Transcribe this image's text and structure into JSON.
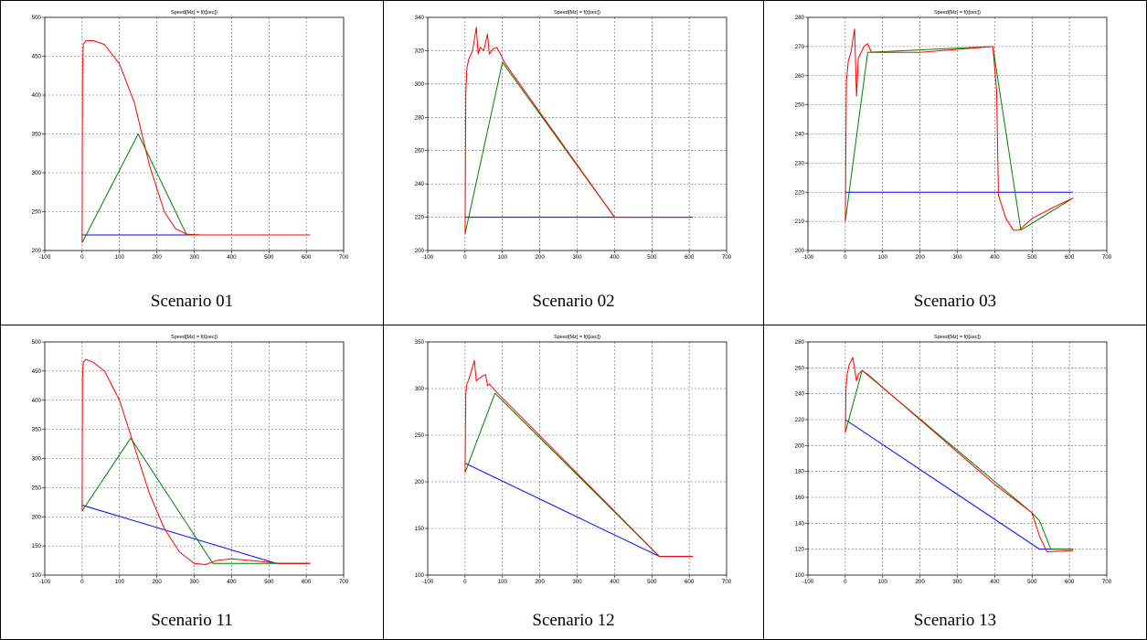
{
  "colors": {
    "setpoint": "#0000ff",
    "reference": "#008000",
    "speed": "#ff0000",
    "overlap": "#7a3a10"
  },
  "chart_data": [
    {
      "type": "line",
      "title": "Speed[Mz] = f(t[sec])",
      "caption": "Scenario 01",
      "xlim": [
        -100,
        700
      ],
      "ylim": [
        200,
        500
      ],
      "xticks": [
        -100,
        0,
        100,
        200,
        300,
        400,
        500,
        600,
        700
      ],
      "yticks": [
        200,
        250,
        300,
        350,
        400,
        450,
        500
      ],
      "grid": true,
      "series": [
        {
          "color": "blue",
          "x": [
            0,
            400,
            610
          ],
          "y": [
            220,
            220,
            220
          ]
        },
        {
          "color": "green",
          "x": [
            0,
            150,
            280,
            400
          ],
          "y": [
            210,
            350,
            220,
            220
          ]
        },
        {
          "color": "red",
          "x": [
            0,
            1,
            3,
            10,
            30,
            60,
            100,
            140,
            180,
            220,
            250,
            280,
            320,
            400,
            610
          ],
          "y": [
            210,
            430,
            465,
            470,
            470,
            465,
            440,
            390,
            310,
            250,
            228,
            221,
            220,
            220,
            220
          ]
        }
      ]
    },
    {
      "type": "line",
      "title": "Speed[Mz] = f(t[sec])",
      "caption": "Scenario 02",
      "xlim": [
        -100,
        700
      ],
      "ylim": [
        200,
        340
      ],
      "xticks": [
        -100,
        0,
        100,
        200,
        300,
        400,
        500,
        600,
        700
      ],
      "yticks": [
        200,
        220,
        240,
        260,
        280,
        300,
        320,
        340
      ],
      "grid": true,
      "series": [
        {
          "color": "blue",
          "x": [
            0,
            5,
            610
          ],
          "y": [
            220,
            220,
            220
          ]
        },
        {
          "color": "green",
          "x": [
            0,
            100,
            400
          ],
          "y": [
            210,
            313,
            220
          ]
        },
        {
          "color": "red",
          "x": [
            0,
            2,
            5,
            10,
            20,
            30,
            35,
            40,
            50,
            60,
            65,
            75,
            85,
            95,
            105,
            400,
            610
          ],
          "y": [
            210,
            295,
            310,
            315,
            320,
            334,
            318,
            322,
            320,
            330,
            318,
            321,
            322,
            318,
            313,
            220,
            220
          ]
        }
      ]
    },
    {
      "type": "line",
      "title": "Speed[Mz] = f(t[sec])",
      "caption": "Scenario 03",
      "xlim": [
        -100,
        700
      ],
      "ylim": [
        200,
        280
      ],
      "xticks": [
        -100,
        0,
        100,
        200,
        300,
        400,
        500,
        600,
        700
      ],
      "yticks": [
        200,
        210,
        220,
        230,
        240,
        250,
        260,
        270,
        280
      ],
      "grid": true,
      "series": [
        {
          "color": "blue",
          "x": [
            0,
            610
          ],
          "y": [
            220,
            220
          ]
        },
        {
          "color": "green",
          "x": [
            0,
            60,
            395,
            470,
            610
          ],
          "y": [
            210,
            268,
            270,
            207,
            218
          ]
        },
        {
          "color": "red",
          "x": [
            0,
            3,
            8,
            15,
            25,
            30,
            35,
            50,
            60,
            70,
            100,
            200,
            300,
            395,
            405,
            410,
            430,
            450,
            465,
            500,
            560,
            610
          ],
          "y": [
            210,
            258,
            265,
            268,
            276,
            253,
            266,
            270,
            271,
            268,
            268,
            268,
            269,
            270,
            255,
            219,
            211,
            207,
            207,
            211,
            215,
            218
          ]
        }
      ]
    },
    {
      "type": "line",
      "title": "Speed[Mz] = f(t[sec])",
      "caption": "Scenario 11",
      "xlim": [
        -100,
        700
      ],
      "ylim": [
        100,
        500
      ],
      "xticks": [
        -100,
        0,
        100,
        200,
        300,
        400,
        500,
        600,
        700
      ],
      "yticks": [
        100,
        150,
        200,
        250,
        300,
        350,
        400,
        450,
        500
      ],
      "grid": true,
      "series": [
        {
          "color": "blue",
          "x": [
            0,
            520,
            610
          ],
          "y": [
            220,
            120,
            120
          ]
        },
        {
          "color": "green",
          "x": [
            0,
            130,
            350,
            610
          ],
          "y": [
            210,
            335,
            120,
            120
          ]
        },
        {
          "color": "red",
          "x": [
            0,
            1,
            3,
            10,
            30,
            60,
            100,
            140,
            180,
            220,
            260,
            300,
            330,
            360,
            400,
            450,
            500,
            530,
            610
          ],
          "y": [
            210,
            440,
            465,
            470,
            465,
            450,
            400,
            320,
            240,
            180,
            140,
            120,
            118,
            125,
            128,
            125,
            122,
            120,
            120
          ]
        }
      ]
    },
    {
      "type": "line",
      "title": "Speed[Mz] = f(t[sec])",
      "caption": "Scenario 12",
      "xlim": [
        -100,
        700
      ],
      "ylim": [
        100,
        350
      ],
      "xticks": [
        -100,
        0,
        100,
        200,
        300,
        400,
        500,
        600,
        700
      ],
      "yticks": [
        100,
        150,
        200,
        250,
        300,
        350
      ],
      "grid": true,
      "series": [
        {
          "color": "blue",
          "x": [
            0,
            520,
            610
          ],
          "y": [
            220,
            120,
            120
          ]
        },
        {
          "color": "green",
          "x": [
            0,
            80,
            520
          ],
          "y": [
            210,
            295,
            120
          ]
        },
        {
          "color": "red",
          "x": [
            0,
            2,
            5,
            10,
            25,
            30,
            35,
            45,
            55,
            60,
            65,
            80,
            520,
            610
          ],
          "y": [
            210,
            295,
            305,
            310,
            330,
            308,
            310,
            313,
            315,
            303,
            305,
            298,
            120,
            120
          ]
        }
      ]
    },
    {
      "type": "line",
      "title": "Speed[Mz] = f(t[sec])",
      "caption": "Scenario 13",
      "xlim": [
        -100,
        700
      ],
      "ylim": [
        100,
        280
      ],
      "xticks": [
        -100,
        0,
        100,
        200,
        300,
        400,
        500,
        600,
        700
      ],
      "yticks": [
        100,
        120,
        140,
        160,
        180,
        200,
        220,
        240,
        260,
        280
      ],
      "grid": true,
      "series": [
        {
          "color": "blue",
          "x": [
            0,
            520,
            610
          ],
          "y": [
            220,
            120,
            120
          ]
        },
        {
          "color": "green",
          "x": [
            0,
            45,
            500,
            520,
            550,
            610
          ],
          "y": [
            210,
            258,
            148,
            142,
            120,
            120
          ]
        },
        {
          "color": "red",
          "x": [
            0,
            2,
            5,
            10,
            20,
            30,
            35,
            45,
            60,
            100,
            200,
            300,
            400,
            500,
            520,
            540,
            610
          ],
          "y": [
            210,
            245,
            255,
            262,
            268,
            250,
            255,
            258,
            255,
            245,
            220,
            195,
            170,
            148,
            130,
            118,
            119
          ]
        }
      ]
    }
  ]
}
